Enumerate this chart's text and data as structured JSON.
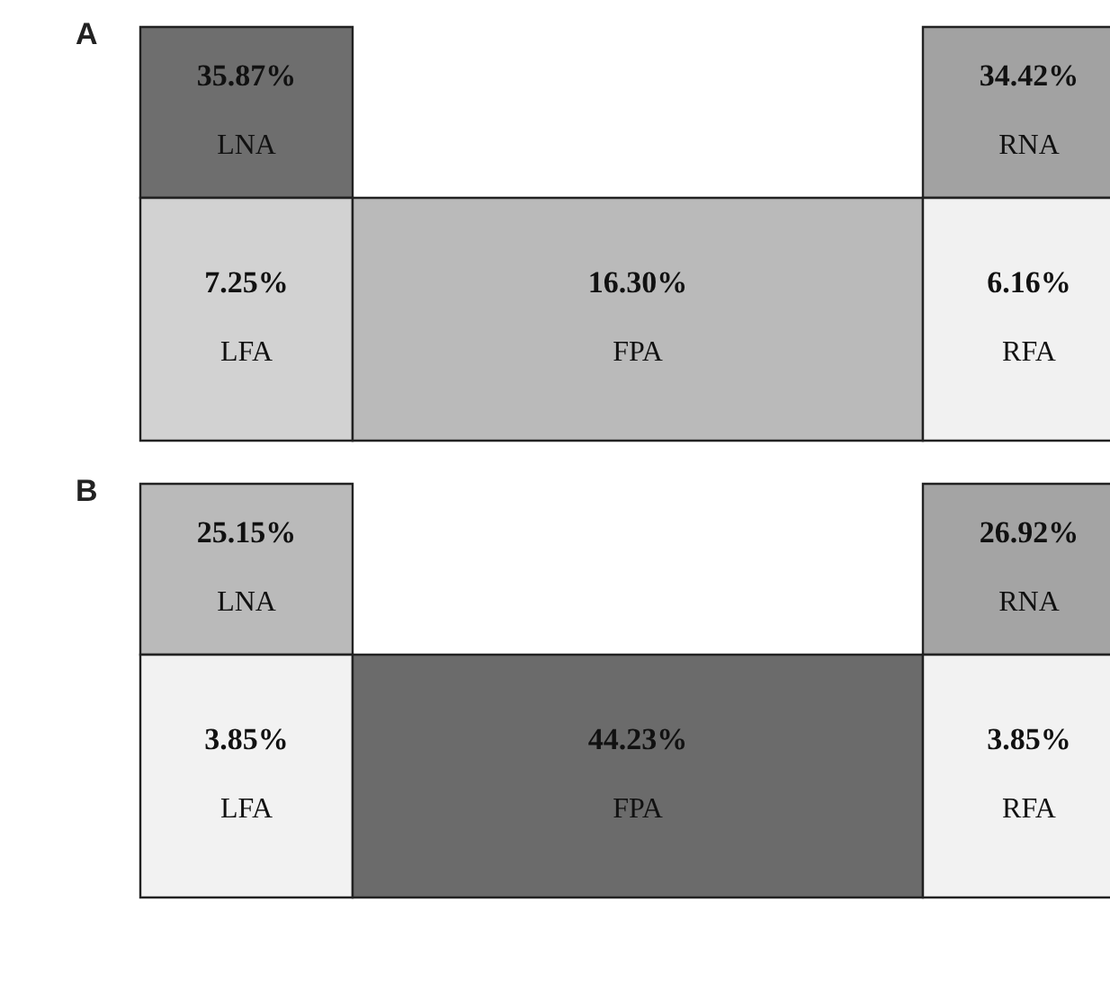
{
  "chart_data": [
    {
      "type": "other",
      "title": "A",
      "categories": [
        "LNA",
        "RNA",
        "LFA",
        "FPA",
        "RFA"
      ],
      "values": [
        35.87,
        34.42,
        7.25,
        16.3,
        6.16
      ],
      "value_labels": [
        "35.87%",
        "34.42%",
        "7.25%",
        "16.30%",
        "6.16%"
      ],
      "colors": [
        "#6e6e6e",
        "#a2a2a2",
        "#d2d2d2",
        "#bababa",
        "#f1f1f1"
      ]
    },
    {
      "type": "other",
      "title": "B",
      "categories": [
        "LNA",
        "RNA",
        "LFA",
        "FPA",
        "RFA"
      ],
      "values": [
        25.15,
        26.92,
        3.85,
        44.23,
        3.85
      ],
      "value_labels": [
        "25.15%",
        "26.92%",
        "3.85%",
        "44.23%",
        "3.85%"
      ],
      "colors": [
        "#bababa",
        "#a4a4a4",
        "#f2f2f2",
        "#6b6b6b",
        "#f2f2f2"
      ]
    }
  ]
}
